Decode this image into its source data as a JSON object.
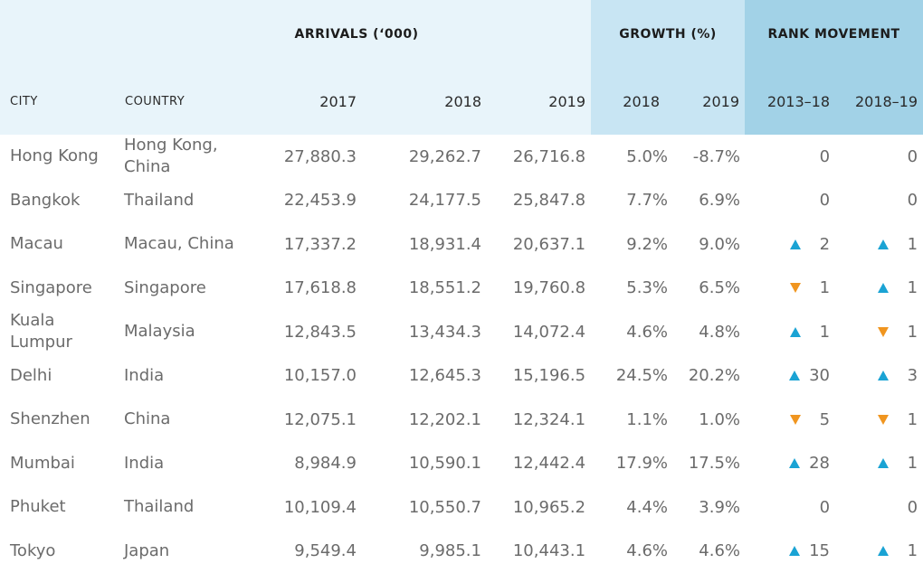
{
  "chart_data": {
    "type": "table",
    "group_headers": {
      "arrivals": "ARRIVALS (‘000)",
      "growth": "GROWTH (%)",
      "rank_movement": "RANK MOVEMENT"
    },
    "columns": {
      "city": "CITY",
      "country": "COUNTRY",
      "arr_2017": "2017",
      "arr_2018": "2018",
      "arr_2019": "2019",
      "growth_2018": "2018",
      "growth_2019": "2019",
      "rank_2013_18": "2013–18",
      "rank_2018_19": "2018–19"
    },
    "rows": [
      {
        "city": "Hong Kong",
        "country": "Hong Kong, China",
        "arr_2017": "27,880.3",
        "arr_2018": "29,262.7",
        "arr_2019": "26,716.8",
        "growth_2018": "5.0%",
        "growth_2019": "-8.7%",
        "rank_2013_18": {
          "value": "0",
          "dir": "none"
        },
        "rank_2018_19": {
          "value": "0",
          "dir": "none"
        }
      },
      {
        "city": "Bangkok",
        "country": "Thailand",
        "arr_2017": "22,453.9",
        "arr_2018": "24,177.5",
        "arr_2019": "25,847.8",
        "growth_2018": "7.7%",
        "growth_2019": "6.9%",
        "rank_2013_18": {
          "value": "0",
          "dir": "none"
        },
        "rank_2018_19": {
          "value": "0",
          "dir": "none"
        }
      },
      {
        "city": "Macau",
        "country": "Macau, China",
        "arr_2017": "17,337.2",
        "arr_2018": "18,931.4",
        "arr_2019": "20,637.1",
        "growth_2018": "9.2%",
        "growth_2019": "9.0%",
        "rank_2013_18": {
          "value": "2",
          "dir": "up"
        },
        "rank_2018_19": {
          "value": "1",
          "dir": "up"
        }
      },
      {
        "city": "Singapore",
        "country": "Singapore",
        "arr_2017": "17,618.8",
        "arr_2018": "18,551.2",
        "arr_2019": "19,760.8",
        "growth_2018": "5.3%",
        "growth_2019": "6.5%",
        "rank_2013_18": {
          "value": "1",
          "dir": "down"
        },
        "rank_2018_19": {
          "value": "1",
          "dir": "up"
        }
      },
      {
        "city": "Kuala Lumpur",
        "country": "Malaysia",
        "arr_2017": "12,843.5",
        "arr_2018": "13,434.3",
        "arr_2019": "14,072.4",
        "growth_2018": "4.6%",
        "growth_2019": "4.8%",
        "rank_2013_18": {
          "value": "1",
          "dir": "up"
        },
        "rank_2018_19": {
          "value": "1",
          "dir": "down"
        }
      },
      {
        "city": "Delhi",
        "country": "India",
        "arr_2017": "10,157.0",
        "arr_2018": "12,645.3",
        "arr_2019": "15,196.5",
        "growth_2018": "24.5%",
        "growth_2019": "20.2%",
        "rank_2013_18": {
          "value": "30",
          "dir": "up"
        },
        "rank_2018_19": {
          "value": "3",
          "dir": "up"
        }
      },
      {
        "city": "Shenzhen",
        "country": "China",
        "arr_2017": "12,075.1",
        "arr_2018": "12,202.1",
        "arr_2019": "12,324.1",
        "growth_2018": "1.1%",
        "growth_2019": "1.0%",
        "rank_2013_18": {
          "value": "5",
          "dir": "down"
        },
        "rank_2018_19": {
          "value": "1",
          "dir": "down"
        }
      },
      {
        "city": "Mumbai",
        "country": "India",
        "arr_2017": "8,984.9",
        "arr_2018": "10,590.1",
        "arr_2019": "12,442.4",
        "growth_2018": "17.9%",
        "growth_2019": "17.5%",
        "rank_2013_18": {
          "value": "28",
          "dir": "up"
        },
        "rank_2018_19": {
          "value": "1",
          "dir": "up"
        }
      },
      {
        "city": "Phuket",
        "country": "Thailand",
        "arr_2017": "10,109.4",
        "arr_2018": "10,550.7",
        "arr_2019": "10,965.2",
        "growth_2018": "4.4%",
        "growth_2019": "3.9%",
        "rank_2013_18": {
          "value": "0",
          "dir": "none"
        },
        "rank_2018_19": {
          "value": "0",
          "dir": "none"
        }
      },
      {
        "city": "Tokyo",
        "country": "Japan",
        "arr_2017": "9,549.4",
        "arr_2018": "9,985.1",
        "arr_2019": "10,443.1",
        "growth_2018": "4.6%",
        "growth_2019": "4.6%",
        "rank_2013_18": {
          "value": "15",
          "dir": "up"
        },
        "rank_2018_19": {
          "value": "1",
          "dir": "up"
        }
      }
    ]
  },
  "colors": {
    "header_light": "#e8f4fa",
    "header_mid": "#c8e5f3",
    "header_dark": "#a2d2e7",
    "arrow_up": "#1aa3d4",
    "arrow_down": "#f0951f",
    "body_text": "#6b6b6b"
  }
}
